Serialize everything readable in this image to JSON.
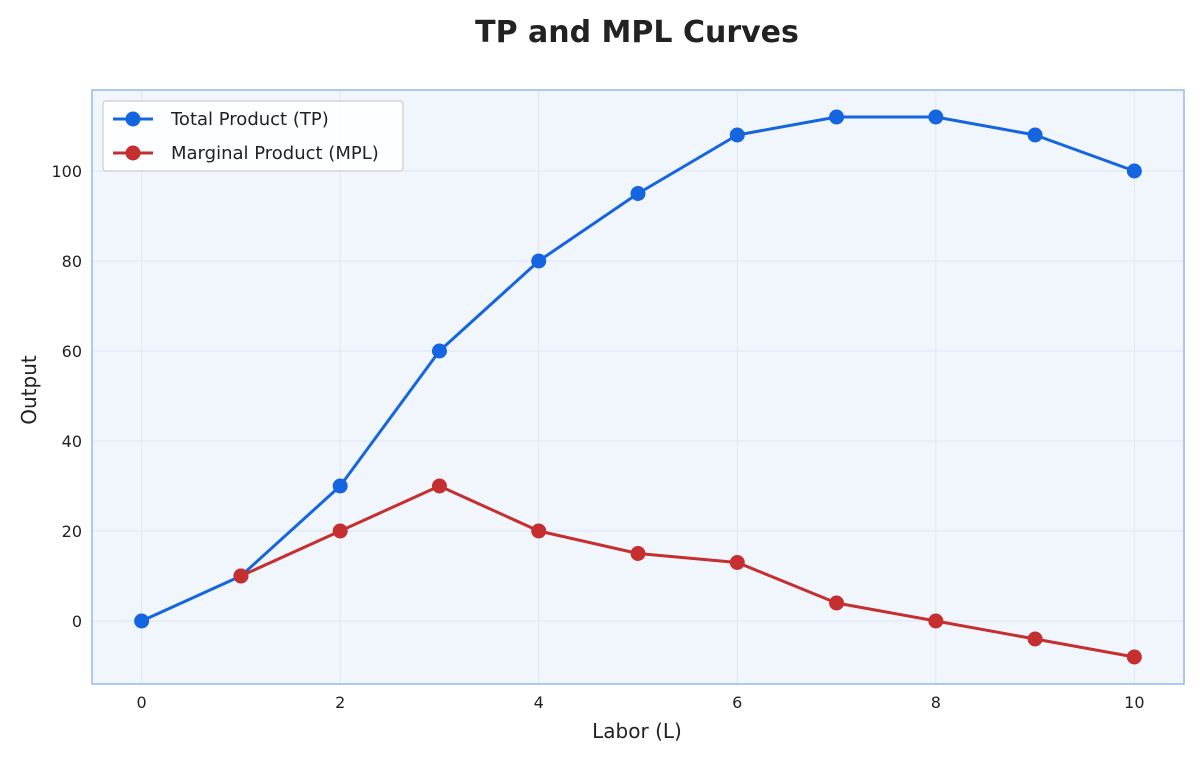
{
  "chart_data": {
    "type": "line",
    "title": "TP and MPL Curves",
    "xlabel": "Labor (L)",
    "ylabel": "Output",
    "xlim": [
      -0.5,
      10.5
    ],
    "ylim": [
      -14,
      118
    ],
    "xticks": [
      0,
      2,
      4,
      6,
      8,
      10
    ],
    "yticks": [
      0,
      20,
      40,
      60,
      80,
      100
    ],
    "grid": true,
    "legend_position": "top-left",
    "series": [
      {
        "name": "Total Product (TP)",
        "color": "#1565e0",
        "x": [
          0,
          1,
          2,
          3,
          4,
          5,
          6,
          7,
          8,
          9,
          10
        ],
        "y": [
          0,
          10,
          30,
          60,
          80,
          95,
          108,
          112,
          112,
          108,
          100
        ]
      },
      {
        "name": "Marginal Product (MPL)",
        "color": "#c62f2f",
        "x": [
          1,
          2,
          3,
          4,
          5,
          6,
          7,
          8,
          9,
          10
        ],
        "y": [
          10,
          20,
          30,
          20,
          15,
          13,
          4,
          0,
          -4,
          -8
        ]
      }
    ],
    "colors": {
      "plot_background": "#f1f6fd",
      "plot_border": "#97b9ee",
      "grid": "#dfe7f5"
    }
  }
}
